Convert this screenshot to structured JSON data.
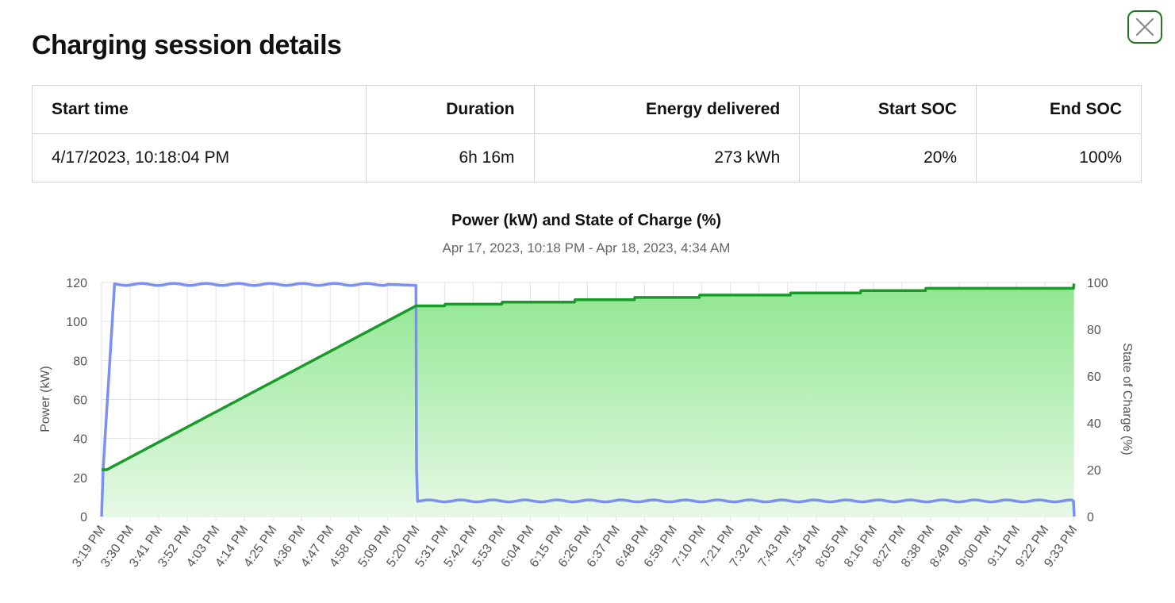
{
  "modal": {
    "title": "Charging session details",
    "close_icon": "close-icon"
  },
  "summary": {
    "headers": [
      "Start time",
      "Duration",
      "Energy delivered",
      "Start SOC",
      "End SOC"
    ],
    "row": [
      "4/17/2023, 10:18:04 PM",
      "6h 16m",
      "273 kWh",
      "20%",
      "100%"
    ]
  },
  "colors": {
    "power_line": "#7b8ff5",
    "soc_line": "#1a9a2a",
    "soc_fill_top": "#8fe68f",
    "soc_fill_bottom": "#e6f9e6",
    "close_border": "#1f7a1f",
    "grid": "#e2e2e2"
  },
  "chart_data": {
    "type": "line",
    "title": "Power (kW) and State of Charge (%)",
    "subtitle": "Apr 17, 2023, 10:18 PM - Apr 18, 2023, 4:34 AM",
    "y_left_label": "Power (kW)",
    "y_right_label": "State of Charge (%)",
    "y_left_range": [
      0,
      120
    ],
    "y_left_ticks": [
      "0",
      "20",
      "40",
      "60",
      "80",
      "100",
      "120"
    ],
    "y_right_range": [
      0,
      100
    ],
    "y_right_ticks": [
      "0",
      "20",
      "40",
      "60",
      "80",
      "100"
    ],
    "x_ticks": [
      "3:19 PM",
      "3:30 PM",
      "3:41 PM",
      "3:52 PM",
      "4:03 PM",
      "4:14 PM",
      "4:25 PM",
      "4:36 PM",
      "4:47 PM",
      "4:58 PM",
      "5:09 PM",
      "5:20 PM",
      "5:31 PM",
      "5:42 PM",
      "5:53 PM",
      "6:04 PM",
      "6:15 PM",
      "6:26 PM",
      "6:37 PM",
      "6:48 PM",
      "6:59 PM",
      "7:10 PM",
      "7:21 PM",
      "7:32 PM",
      "7:43 PM",
      "7:54 PM",
      "8:05 PM",
      "8:16 PM",
      "8:27 PM",
      "8:38 PM",
      "8:49 PM",
      "9:00 PM",
      "9:11 PM",
      "9:22 PM",
      "9:33 PM"
    ],
    "grid": true,
    "x_unit": "minutes after 3:19 PM",
    "series": [
      {
        "name": "Power (kW)",
        "axis": "left",
        "x": [
          0,
          0.6,
          5,
          20,
          60,
          110,
          121,
          121.2,
          121.6,
          374,
          374.3
        ],
        "y": [
          0,
          24,
          119,
          119,
          119,
          119,
          118.5,
          25,
          8,
          8,
          0
        ]
      },
      {
        "name": "State of Charge (%)",
        "axis": "right",
        "x": [
          0,
          2,
          121,
          121.2,
          132,
          132.2,
          154,
          154.2,
          182,
          182.2,
          205,
          205.2,
          230,
          230.2,
          265,
          265.2,
          292,
          292.2,
          317,
          317.2,
          374,
          374.2
        ],
        "y": [
          20,
          20,
          90,
          90,
          90,
          90.7,
          90.7,
          91.6,
          91.6,
          92.6,
          92.6,
          93.6,
          93.6,
          94.6,
          94.6,
          95.5,
          95.5,
          96.5,
          96.5,
          97.5,
          97.5,
          99.5
        ]
      }
    ]
  }
}
